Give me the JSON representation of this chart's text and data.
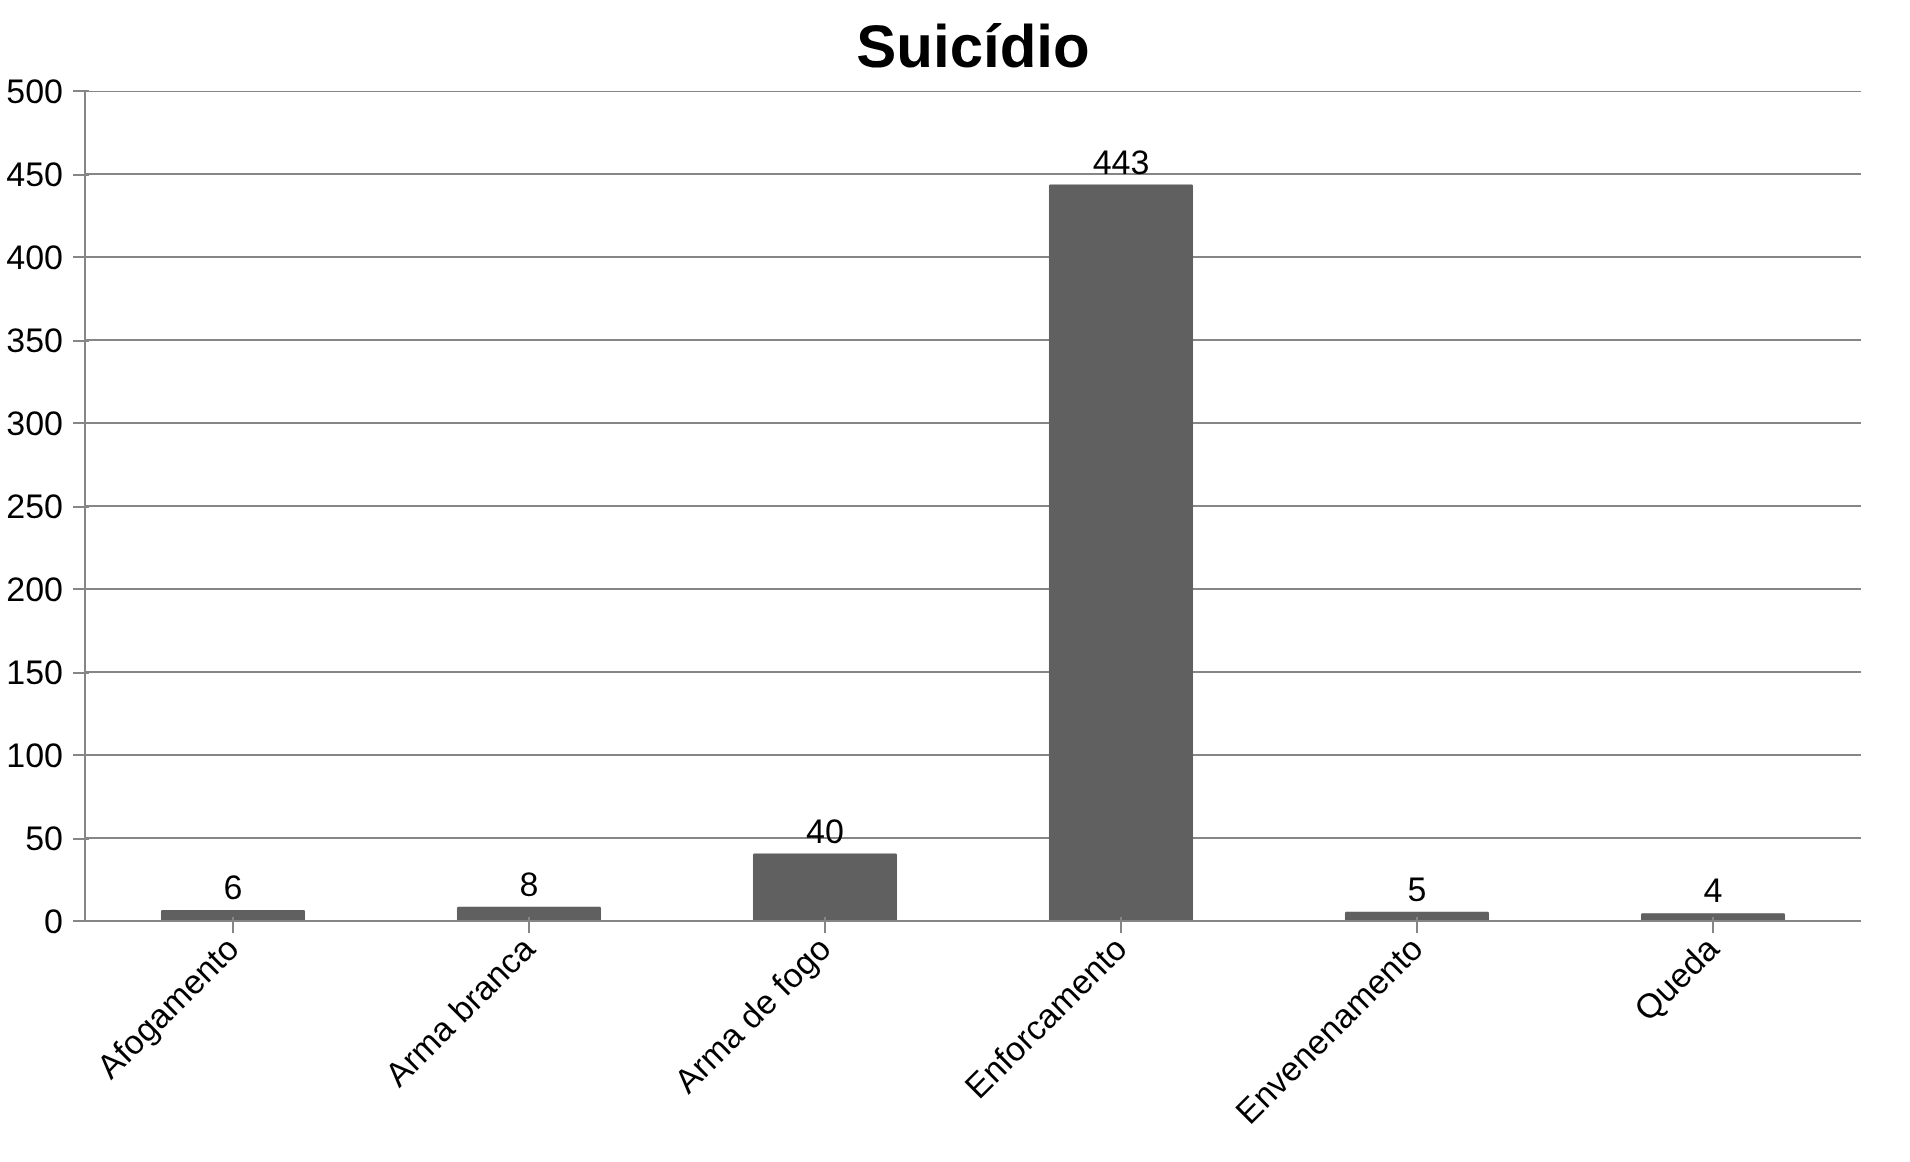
{
  "chart_data": {
    "type": "bar",
    "title": "Suicídio",
    "categories": [
      "Afogamento",
      "Arma branca",
      "Arma de fogo",
      "Enforcamento",
      "Envenenamento",
      "Queda"
    ],
    "values": [
      6,
      8,
      40,
      443,
      5,
      4
    ],
    "color": "#606060",
    "ylim": [
      0,
      500
    ],
    "yticks": [
      0,
      50,
      100,
      150,
      200,
      250,
      300,
      350,
      400,
      450,
      500
    ],
    "grid": "y",
    "data_labels": true
  }
}
